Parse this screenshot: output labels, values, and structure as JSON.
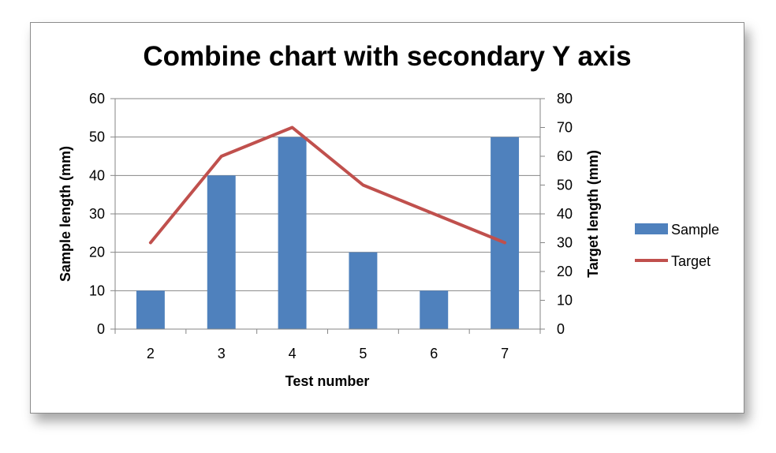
{
  "chart_data": {
    "type": "bar",
    "title": "Combine chart with secondary Y axis",
    "xlabel": "Test number",
    "ylabel": "Sample length (mm)",
    "y2label": "Target length (mm)",
    "categories": [
      "2",
      "3",
      "4",
      "5",
      "6",
      "7"
    ],
    "ylim": [
      0,
      60
    ],
    "y2lim": [
      0,
      80
    ],
    "yticks": [
      "0",
      "10",
      "20",
      "30",
      "40",
      "50",
      "60"
    ],
    "y2ticks": [
      "0",
      "10",
      "20",
      "30",
      "40",
      "50",
      "60",
      "70",
      "80"
    ],
    "grid": true,
    "legend_position": "right",
    "series": [
      {
        "name": "Sample",
        "type": "bar",
        "axis": "primary",
        "color": "#4f81bd",
        "values": [
          10,
          40,
          50,
          20,
          10,
          50
        ]
      },
      {
        "name": "Target",
        "type": "line",
        "axis": "secondary",
        "color": "#c0504d",
        "values": [
          30,
          60,
          70,
          50,
          40,
          30
        ]
      }
    ]
  }
}
